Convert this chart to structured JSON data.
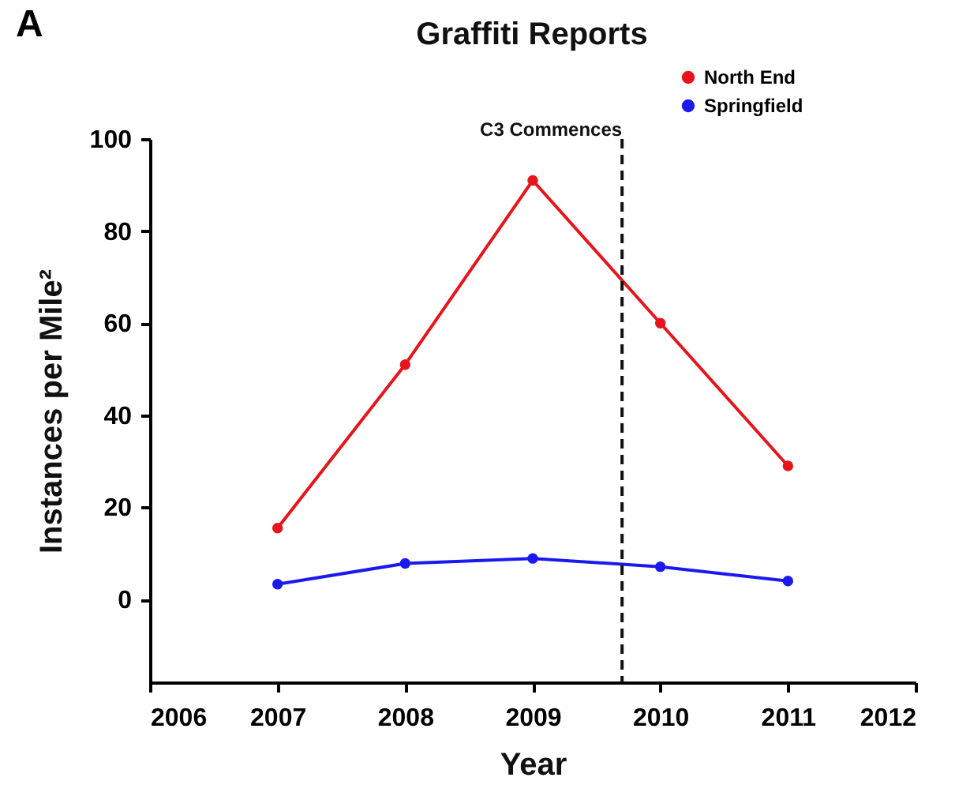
{
  "chart_data": {
    "type": "line",
    "title": "Graffiti Reports",
    "xlabel": "Year",
    "ylabel": "Instances per Mile²",
    "annotations": [
      "A"
    ],
    "x": [
      2007,
      2008,
      2009,
      2010,
      2011
    ],
    "series": [
      {
        "name": "North End",
        "color": "#e8141c",
        "values": [
          15.5,
          51,
          91,
          60,
          29
        ]
      },
      {
        "name": "Springfield",
        "color": "#1a1aef",
        "values": [
          3.3,
          7.8,
          8.9,
          7.1,
          4.0
        ]
      }
    ],
    "xlim": [
      2006,
      2012
    ],
    "xticks": [
      2006,
      2007,
      2008,
      2009,
      2010,
      2011,
      2012
    ],
    "ylim": [
      -18,
      100
    ],
    "yticks": [
      0,
      20,
      40,
      60,
      80,
      100
    ],
    "ref_lines": [
      {
        "axis": "x",
        "value": 2009.7,
        "label": "C3 Commences",
        "color": "#111111",
        "line_style": "dashed"
      }
    ],
    "grid": false,
    "legend": "top right",
    "marker": "circle",
    "line_style": "solid"
  }
}
